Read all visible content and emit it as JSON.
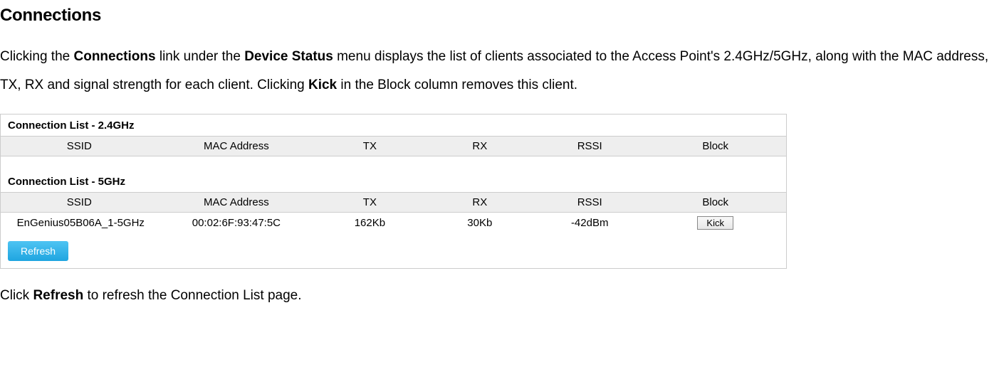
{
  "page_title": "Connections",
  "description": {
    "pre1": "Clicking the ",
    "b1": "Connections",
    "mid1": " link under the ",
    "b2": "Device Status",
    "mid2": " menu displays the list of clients associated to the Access Point's 2.4GHz/5GHz, along with the MAC address, TX, RX and signal strength for each client. Clicking ",
    "b3": "Kick",
    "post": " in the Block column removes this client."
  },
  "panel": {
    "list24_title": "Connection List - 2.4GHz",
    "list5_title": "Connection List - 5GHz",
    "columns": {
      "ssid": "SSID",
      "mac": "MAC Address",
      "tx": "TX",
      "rx": "RX",
      "rssi": "RSSI",
      "block": "Block"
    },
    "row5ghz": {
      "ssid": "EnGenius05B06A_1-5GHz",
      "mac": "00:02:6F:93:47:5C",
      "tx": "162Kb",
      "rx": "30Kb",
      "rssi": "-42dBm",
      "kick_label": "Kick"
    },
    "refresh_label": "Refresh"
  },
  "footer": {
    "pre": "Click ",
    "b1": "Refresh",
    "post": " to refresh the Connection List page."
  },
  "colors": {
    "header_bg": "#eeeeee",
    "border": "#cccccc",
    "refresh_grad_top": "#4ec4f3",
    "refresh_grad_bottom": "#1fa5e0",
    "kick_border": "#888888",
    "text": "#000000"
  }
}
